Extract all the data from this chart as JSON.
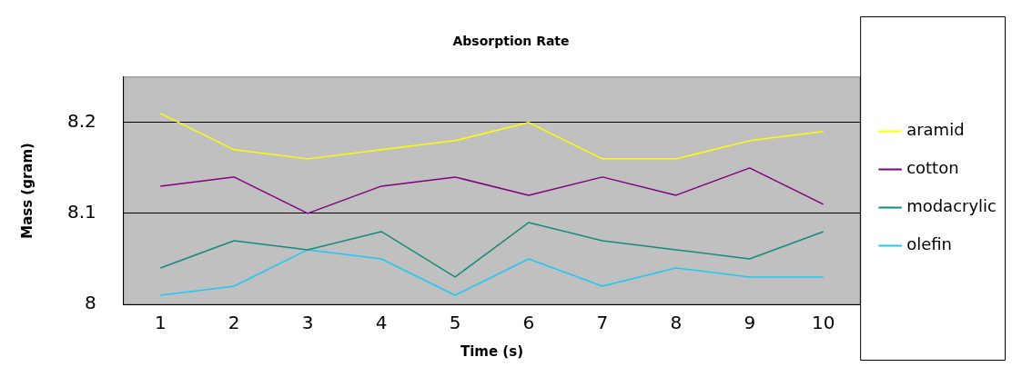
{
  "chart_data": {
    "type": "line",
    "title": "Absorption Rate",
    "xlabel": "Time (s)",
    "ylabel": "Mass (gram)",
    "categories": [
      "1",
      "2",
      "3",
      "4",
      "5",
      "6",
      "7",
      "8",
      "9",
      "10"
    ],
    "series": [
      {
        "name": "aramid",
        "color": "#ffff00",
        "values": [
          8.21,
          8.17,
          8.16,
          8.17,
          8.18,
          8.2,
          8.16,
          8.16,
          8.18,
          8.19
        ]
      },
      {
        "name": "cotton",
        "color": "#800080",
        "values": [
          8.13,
          8.14,
          8.1,
          8.13,
          8.14,
          8.12,
          8.14,
          8.12,
          8.15,
          8.11
        ]
      },
      {
        "name": "modacrylic",
        "color": "#138a7e",
        "values": [
          8.04,
          8.07,
          8.06,
          8.08,
          8.03,
          8.09,
          8.07,
          8.06,
          8.05,
          8.08
        ]
      },
      {
        "name": "olefin",
        "color": "#1ec8f5",
        "values": [
          8.01,
          8.02,
          8.06,
          8.05,
          8.01,
          8.05,
          8.02,
          8.04,
          8.03,
          8.03
        ]
      }
    ],
    "ylim": [
      8,
      8.25
    ],
    "yticks": [
      8,
      8.1,
      8.2
    ],
    "grid": "y",
    "legend": "right",
    "marker": "none",
    "line_style": "solid"
  }
}
